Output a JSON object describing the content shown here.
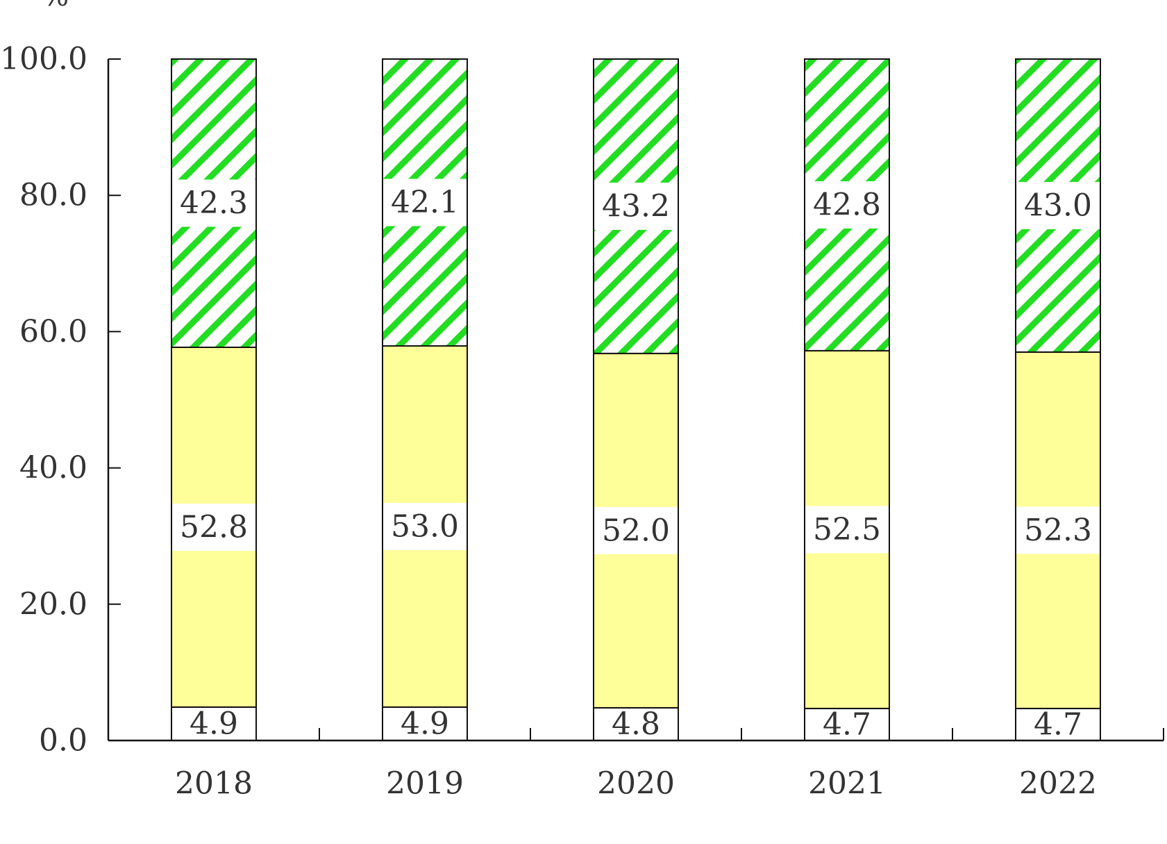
{
  "chart_data": {
    "type": "bar",
    "stacked": true,
    "title": "",
    "y_unit": "%",
    "xlabel": "",
    "ylabel": "",
    "ylim": [
      0,
      100
    ],
    "y_ticks": [
      "0.0",
      "20.0",
      "40.0",
      "60.0",
      "80.0",
      "100.0"
    ],
    "categories": [
      "2018",
      "2019",
      "2020",
      "2021",
      "2022"
    ],
    "series": [
      {
        "values": [
          4.9,
          4.9,
          4.8,
          4.7,
          4.7
        ],
        "labels": [
          "4.9",
          "4.9",
          "4.8",
          "4.7",
          "4.7"
        ],
        "color": "#ffffff",
        "pattern": "none"
      },
      {
        "values": [
          52.8,
          53.0,
          52.0,
          52.5,
          52.3
        ],
        "labels": [
          "52.8",
          "53.0",
          "52.0",
          "52.5",
          "52.3"
        ],
        "color": "#ffff99",
        "pattern": "none"
      },
      {
        "values": [
          42.3,
          42.1,
          43.2,
          42.8,
          43.0
        ],
        "labels": [
          "42.3",
          "42.1",
          "43.2",
          "42.8",
          "43.0"
        ],
        "color": "#22dd22",
        "pattern": "diagonal-stripes"
      }
    ],
    "grid": false,
    "legend": "bottom"
  }
}
